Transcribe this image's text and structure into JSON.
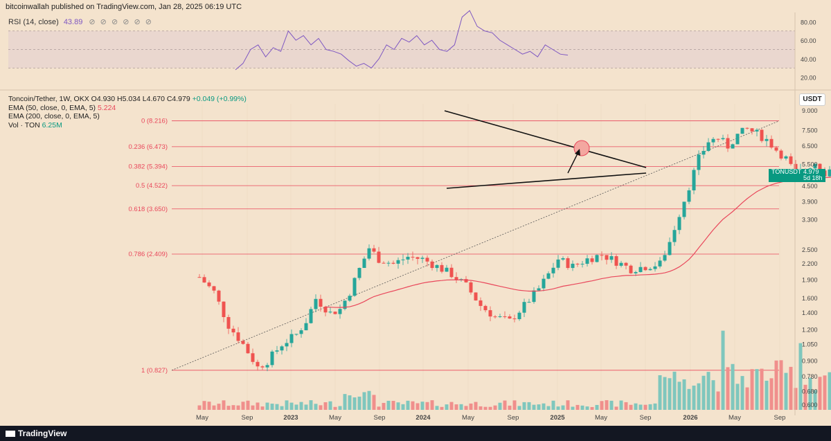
{
  "header": {
    "published": "bitcoinwallah published on TradingView.com, Jan 28, 2025 06:19 UTC"
  },
  "rsi": {
    "label": "RSI (14, close)",
    "value": "43.89",
    "icons": "⊘ ⊘ ⊘ ⊘ ⊘ ⊘",
    "axis_labels": [
      "80.00",
      "60.00",
      "40.00",
      "20.00"
    ],
    "color": "#7e57c2"
  },
  "main": {
    "symbol": "Toncoin/Tether, 1W, OKX",
    "ohlc": "O4.930 H5.034 L4.670 C4.979",
    "change": "+0.049 (+0.99%)",
    "ema50_label": "EMA (50, close, 0, EMA, 5)",
    "ema50_value": "5.224",
    "ema200_label": "EMA (200, close, 0, EMA, 5)",
    "ema200_value": "",
    "vol_label": "Vol · TON",
    "vol_value": "6.25M",
    "currency_button": "USDT",
    "price_tag": {
      "symbol": "TONUSDT",
      "price": "4.979",
      "countdown": "5d 18h"
    }
  },
  "footer": {
    "logo": "TradingView"
  },
  "chart_data": {
    "type": "candlestick",
    "scale": "log",
    "ylim": [
      0.56,
      9.6
    ],
    "price_axis": [
      "9.000",
      "7.500",
      "6.500",
      "5.500",
      "4.500",
      "3.900",
      "3.300",
      "2.500",
      "2.200",
      "1.900",
      "1.600",
      "1.400",
      "1.200",
      "1.050",
      "0.900",
      "0.780",
      "0.680",
      "0.600"
    ],
    "time_axis": [
      "May",
      "Sep",
      "2023",
      "May",
      "Sep",
      "2024",
      "May",
      "Sep",
      "2025",
      "May",
      "Sep",
      "2026",
      "May",
      "Sep"
    ],
    "fib_levels": [
      {
        "label": "0 (8.216)",
        "price": 8.216
      },
      {
        "label": "0.236 (6.473)",
        "price": 6.473
      },
      {
        "label": "0.382 (5.394)",
        "price": 5.394
      },
      {
        "label": "0.5 (4.522)",
        "price": 4.522
      },
      {
        "label": "0.618 (3.650)",
        "price": 3.65
      },
      {
        "label": "0.786 (2.409)",
        "price": 2.409
      },
      {
        "label": "1 (0.827)",
        "price": 0.827
      }
    ],
    "colors": {
      "up": "#26a69a",
      "down": "#ef5350",
      "fib": "#e9475b",
      "ema50": "#e9475b",
      "rsi": "#7e57c2"
    },
    "weeks_start": "2022-05-02"
  }
}
